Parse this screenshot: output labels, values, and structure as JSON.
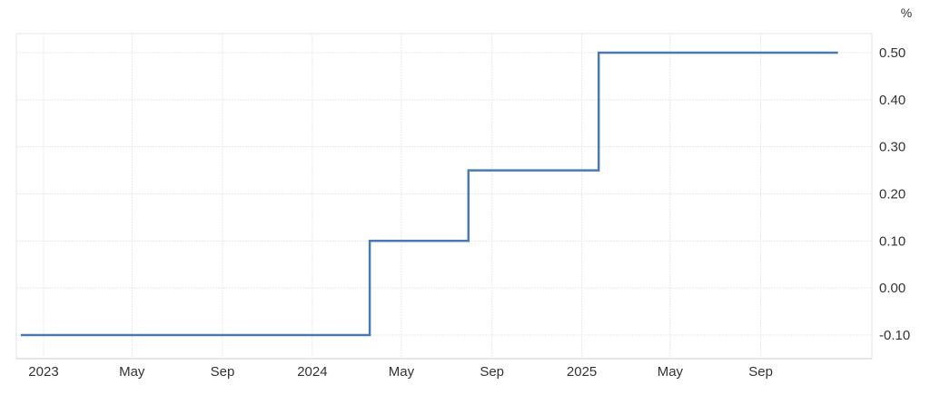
{
  "chart_data": {
    "type": "line",
    "step": true,
    "title": "",
    "xlabel": "",
    "ylabel": "",
    "unit_label": "%",
    "x": [
      "2022-12-01",
      "2024-03-19",
      "2024-03-19",
      "2024-07-31",
      "2024-07-31",
      "2025-01-24",
      "2025-01-24",
      "2025-12-15"
    ],
    "series": [
      {
        "values": [
          -0.1,
          -0.1,
          0.1,
          0.1,
          0.25,
          0.25,
          0.5,
          0.5
        ],
        "color": "#4a7ab5"
      }
    ],
    "ylim": [
      -0.2,
      0.6
    ],
    "yticks": [
      -0.1,
      0.0,
      0.1,
      0.2,
      0.3,
      0.4,
      0.5
    ],
    "ytick_labels": [
      "-0.10",
      "0.00",
      "0.10",
      "0.20",
      "0.30",
      "0.40",
      "0.50"
    ],
    "xticks": [
      "2023-01-01",
      "2023-05-01",
      "2023-09-01",
      "2024-01-01",
      "2024-05-01",
      "2024-09-01",
      "2025-01-01",
      "2025-05-01",
      "2025-09-01"
    ],
    "xtick_labels": [
      "2023",
      "May",
      "Sep",
      "2024",
      "May",
      "Sep",
      "2025",
      "May",
      "Sep"
    ],
    "xlim": [
      "2022-11-25",
      "2026-01-30"
    ],
    "grid": true,
    "yaxis_side": "right",
    "legend": "none"
  }
}
